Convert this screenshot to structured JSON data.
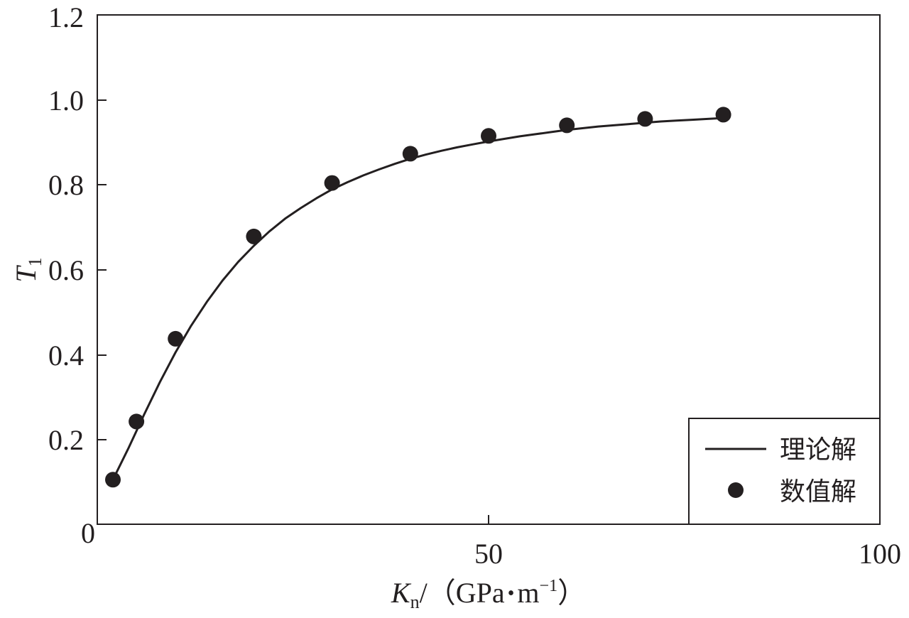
{
  "chart_data": {
    "type": "line",
    "xlabel": {
      "var": "K",
      "sub": "n",
      "unit_open": "/（GPa",
      "unit_dot": "•",
      "unit_m": "m",
      "unit_exp": "−1",
      "unit_close": "）"
    },
    "ylabel": {
      "var": "T",
      "sub": "1"
    },
    "xlim": [
      0,
      100
    ],
    "ylim": [
      0,
      1.2
    ],
    "x_ticks": [
      {
        "value": 0,
        "label": "0"
      },
      {
        "value": 50,
        "label": "50"
      },
      {
        "value": 100,
        "label": "100"
      }
    ],
    "y_ticks": [
      {
        "value": 0.2,
        "label": "0.2"
      },
      {
        "value": 0.4,
        "label": "0.4"
      },
      {
        "value": 0.6,
        "label": "0.6"
      },
      {
        "value": 0.8,
        "label": "0.8"
      },
      {
        "value": 1.0,
        "label": "1.0"
      },
      {
        "value": 1.2,
        "label": "1.2"
      }
    ],
    "grid": false,
    "legend_position": "bottom-right",
    "series": [
      {
        "name": "理论解",
        "style": "line",
        "color": "#231f20",
        "x": [
          2,
          4,
          6,
          8,
          10,
          12,
          14,
          16,
          18,
          20,
          22,
          24,
          26,
          28,
          30,
          32,
          34,
          36,
          38,
          40,
          42,
          44,
          46,
          48,
          50,
          52,
          54,
          56,
          58,
          60,
          62,
          64,
          66,
          68,
          70,
          72,
          74,
          76,
          78,
          80
        ],
        "y": [
          0.105,
          0.18,
          0.259,
          0.335,
          0.405,
          0.468,
          0.524,
          0.574,
          0.618,
          0.656,
          0.69,
          0.72,
          0.745,
          0.768,
          0.789,
          0.806,
          0.822,
          0.836,
          0.849,
          0.861,
          0.871,
          0.88,
          0.888,
          0.895,
          0.902,
          0.908,
          0.914,
          0.919,
          0.924,
          0.929,
          0.933,
          0.937,
          0.94,
          0.943,
          0.946,
          0.949,
          0.951,
          0.953,
          0.955,
          0.957
        ]
      },
      {
        "name": "数值解",
        "style": "scatter",
        "color": "#231f20",
        "x": [
          2,
          5,
          10,
          20,
          30,
          40,
          50,
          60,
          70,
          80
        ],
        "y": [
          0.105,
          0.242,
          0.437,
          0.678,
          0.804,
          0.873,
          0.915,
          0.94,
          0.955,
          0.965
        ]
      }
    ]
  }
}
